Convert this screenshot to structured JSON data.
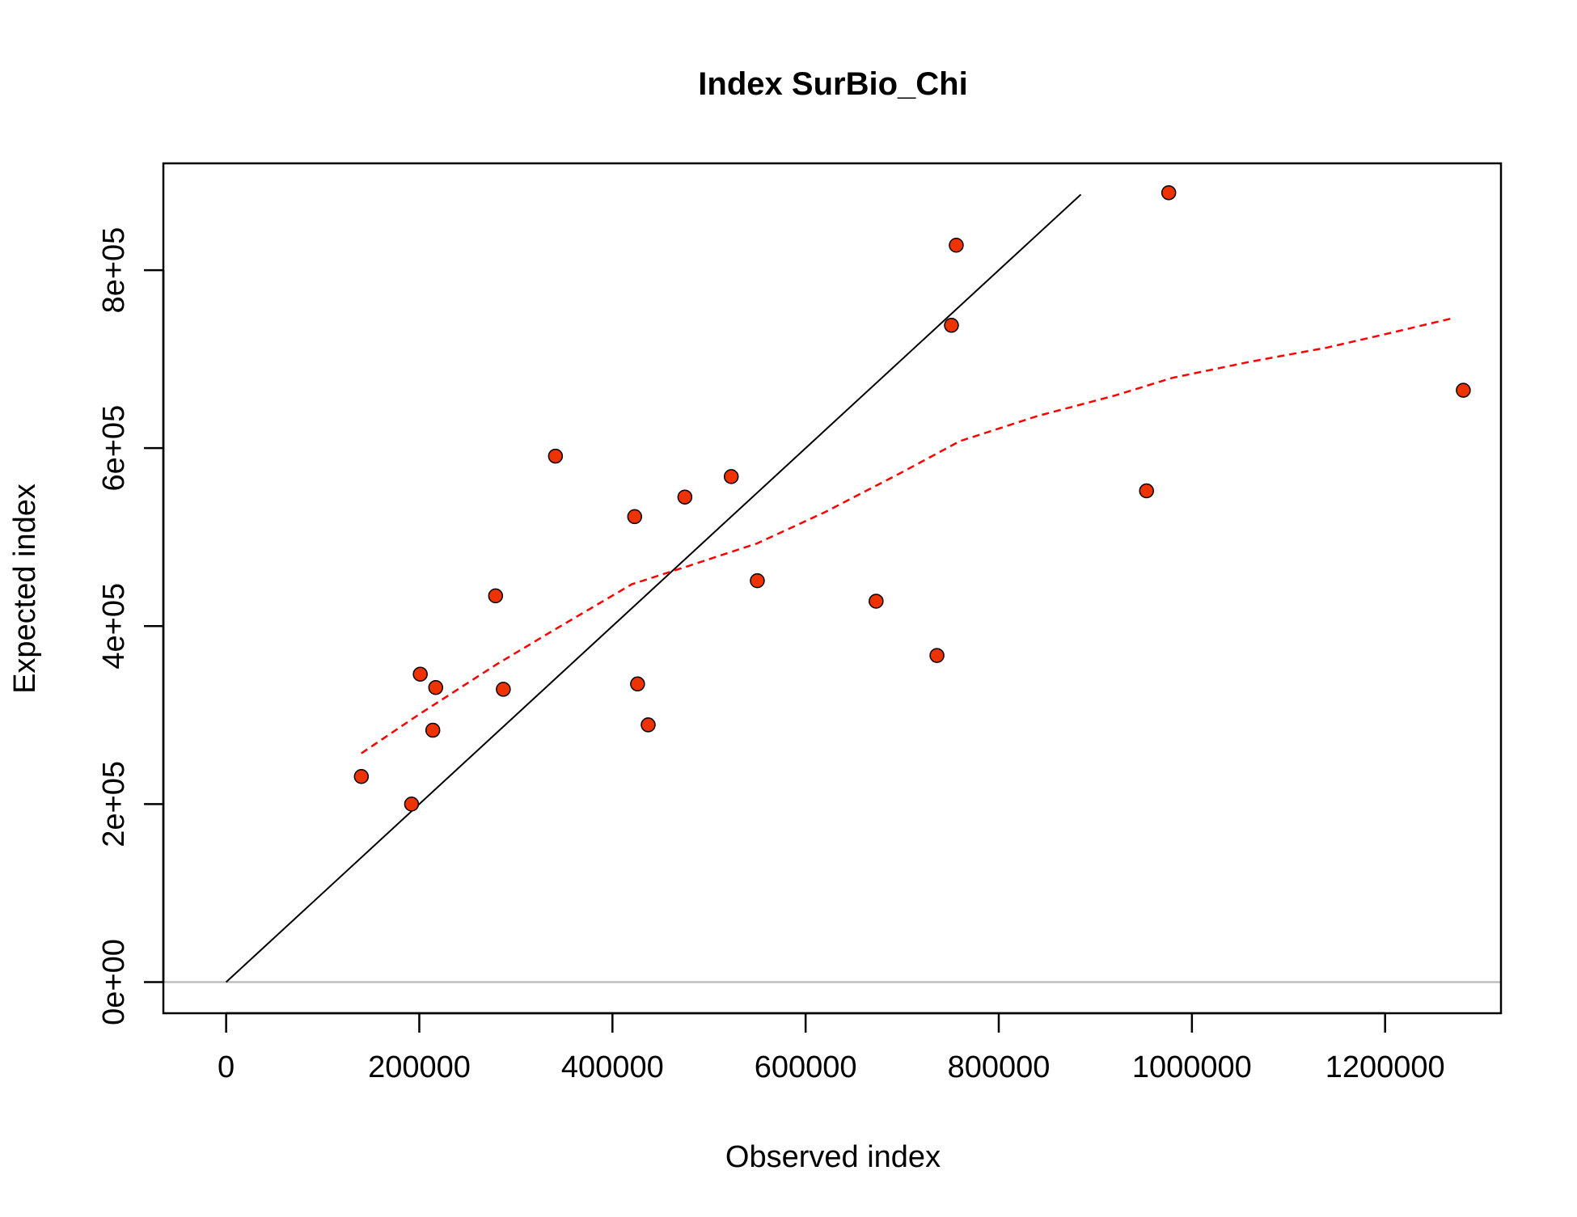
{
  "chart_data": {
    "type": "scatter",
    "title": "Index SurBio_Chi",
    "xlabel": "Observed index",
    "ylabel": "Expected index",
    "xlim": [
      -65000,
      1320000
    ],
    "ylim": [
      -35000,
      920000
    ],
    "x_ticks": [
      0,
      200000,
      400000,
      600000,
      800000,
      1000000,
      1200000
    ],
    "x_tick_labels": [
      "0",
      "200000",
      "400000",
      "600000",
      "800000",
      "1000000",
      "1200000"
    ],
    "y_ticks": [
      0,
      200000,
      400000,
      600000,
      800000
    ],
    "y_tick_labels": [
      "0e+00",
      "2e+05",
      "4e+05",
      "6e+05",
      "8e+05"
    ],
    "grid": false,
    "legend": "none",
    "colors": {
      "point_fill": "#ee3300",
      "point_stroke": "#000000",
      "identity_line": "#000000",
      "smooth_line": "#ff0000",
      "zero_line": "#bebebe"
    },
    "points": [
      {
        "x": 140000,
        "y": 231000
      },
      {
        "x": 192000,
        "y": 200000
      },
      {
        "x": 201000,
        "y": 346000
      },
      {
        "x": 214000,
        "y": 283000
      },
      {
        "x": 217000,
        "y": 331000
      },
      {
        "x": 279000,
        "y": 434000
      },
      {
        "x": 287000,
        "y": 329000
      },
      {
        "x": 341000,
        "y": 591000
      },
      {
        "x": 423000,
        "y": 523000
      },
      {
        "x": 426000,
        "y": 335000
      },
      {
        "x": 437000,
        "y": 289000
      },
      {
        "x": 475000,
        "y": 545000
      },
      {
        "x": 523000,
        "y": 568000
      },
      {
        "x": 550000,
        "y": 451000
      },
      {
        "x": 673000,
        "y": 428000
      },
      {
        "x": 736000,
        "y": 367000
      },
      {
        "x": 751000,
        "y": 738000
      },
      {
        "x": 756000,
        "y": 828000
      },
      {
        "x": 953000,
        "y": 552000
      },
      {
        "x": 976000,
        "y": 887000
      },
      {
        "x": 1281000,
        "y": 665000
      }
    ],
    "identity_line": [
      {
        "x": 0,
        "y": 0
      },
      {
        "x": 885000,
        "y": 885000
      }
    ],
    "smooth_line": [
      {
        "x": 140000,
        "y": 257000
      },
      {
        "x": 200000,
        "y": 301000
      },
      {
        "x": 280000,
        "y": 357000
      },
      {
        "x": 340000,
        "y": 396000
      },
      {
        "x": 420000,
        "y": 447000
      },
      {
        "x": 480000,
        "y": 468000
      },
      {
        "x": 550000,
        "y": 493000
      },
      {
        "x": 620000,
        "y": 528000
      },
      {
        "x": 700000,
        "y": 573000
      },
      {
        "x": 760000,
        "y": 608000
      },
      {
        "x": 840000,
        "y": 636000
      },
      {
        "x": 920000,
        "y": 659000
      },
      {
        "x": 980000,
        "y": 679000
      },
      {
        "x": 1060000,
        "y": 697000
      },
      {
        "x": 1140000,
        "y": 713000
      },
      {
        "x": 1200000,
        "y": 728000
      },
      {
        "x": 1270000,
        "y": 746000
      }
    ],
    "zero_line_y": 0
  }
}
